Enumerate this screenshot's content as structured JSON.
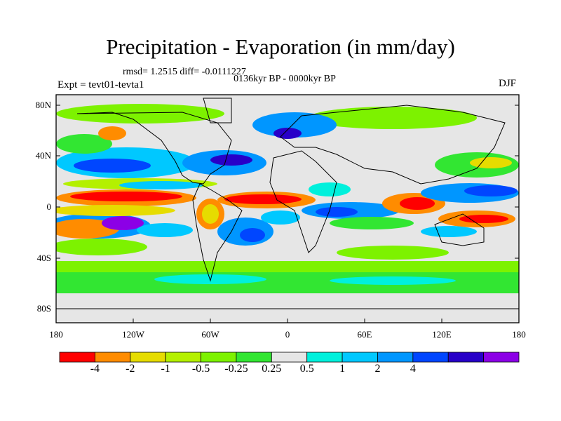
{
  "title": "Precipitation - Evaporation (in mm/day)",
  "rmsd_line": "rmsd= 1.2515 diff= -0.0111227",
  "period": "0136kyr BP - 0000kyr BP",
  "expt": "Expt = tevt01-tevta1",
  "season": "DJF",
  "lat_labels": [
    "80N",
    "40N",
    "0",
    "40S",
    "80S"
  ],
  "lon_labels": [
    "180",
    "120W",
    "60W",
    "0",
    "60E",
    "120E",
    "180"
  ],
  "colorbar": {
    "colors": [
      "#ff0000",
      "#ff8c00",
      "#e6dc00",
      "#b4f000",
      "#7df200",
      "#32e632",
      "#e6e6e6",
      "#00f0dc",
      "#00c8ff",
      "#0096ff",
      "#0046ff",
      "#2800c8",
      "#8c00e6"
    ],
    "labels": [
      "-4",
      "-2",
      "-1",
      "-0.5",
      "-0.25",
      "0.25",
      "0.5",
      "1",
      "2",
      "4"
    ]
  },
  "colors": {
    "ocean_bg": "#e6e6e6",
    "coast": "#000000",
    "frame": "#000000"
  }
}
